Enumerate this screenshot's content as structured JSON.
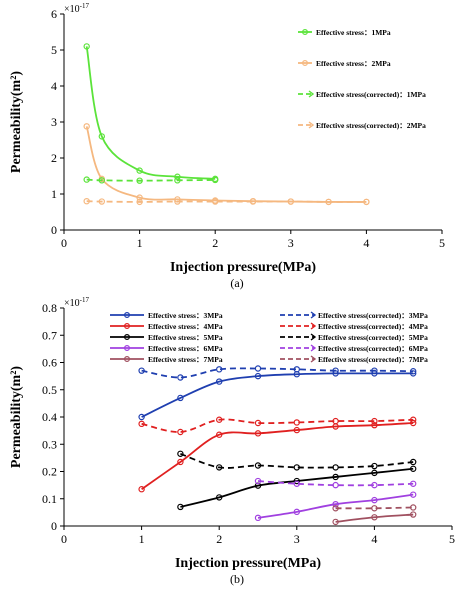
{
  "chart_data": [
    {
      "type": "line",
      "panel_label": "(a)",
      "xlabel": "Injection pressure(MPa)",
      "ylabel": "Permeability(m²)",
      "y_multiplier": "×10",
      "y_multiplier_exp": "-17",
      "xlim": [
        0,
        5
      ],
      "ylim": [
        0,
        6
      ],
      "xticks": [
        "0",
        "1",
        "2",
        "3",
        "4",
        "5"
      ],
      "yticks": [
        "0",
        "1",
        "2",
        "3",
        "4",
        "5",
        "6"
      ],
      "grid": false,
      "legend_position": "right",
      "series": [
        {
          "name": "Effective stress：1MPa",
          "color": "#5be33a",
          "dashed": false,
          "x": [
            0.3,
            0.5,
            1.0,
            1.5,
            2.0
          ],
          "y": [
            5.1,
            2.6,
            1.65,
            1.48,
            1.42
          ]
        },
        {
          "name": "Effective stress：2MPa",
          "color": "#f5b880",
          "dashed": false,
          "x": [
            0.3,
            0.5,
            1.0,
            1.5,
            2.0,
            2.5,
            3.0,
            3.5,
            4.0
          ],
          "y": [
            2.88,
            1.42,
            0.9,
            0.85,
            0.82,
            0.8,
            0.79,
            0.78,
            0.78
          ]
        },
        {
          "name": "Effective stress(corrected)：1MPa",
          "color": "#5be33a",
          "dashed": true,
          "x": [
            0.3,
            0.5,
            1.0,
            1.5,
            2.0
          ],
          "y": [
            1.4,
            1.38,
            1.37,
            1.38,
            1.39
          ]
        },
        {
          "name": "Effective stress(corrected)：2MPa",
          "color": "#f5b880",
          "dashed": true,
          "x": [
            0.3,
            0.5,
            1.0,
            1.5,
            2.0,
            2.5,
            3.0,
            3.5,
            4.0
          ],
          "y": [
            0.8,
            0.79,
            0.78,
            0.79,
            0.79,
            0.79,
            0.79,
            0.78,
            0.78
          ]
        }
      ]
    },
    {
      "type": "line",
      "panel_label": "(b)",
      "xlabel": "Injection pressure(MPa)",
      "ylabel": "Permeability(m²)",
      "y_multiplier": "×10",
      "y_multiplier_exp": "-17",
      "xlim": [
        0,
        5
      ],
      "ylim": [
        0,
        0.8
      ],
      "xticks": [
        "0",
        "1",
        "2",
        "3",
        "4",
        "5"
      ],
      "yticks": [
        "0",
        "0.1",
        "0.2",
        "0.3",
        "0.4",
        "0.5",
        "0.6",
        "0.7",
        "0.8"
      ],
      "grid": false,
      "legend_position": "top",
      "series": [
        {
          "name": "Effective stress：3MPa",
          "color": "#1f3fb0",
          "dashed": false,
          "x": [
            1.0,
            1.5,
            2.0,
            2.5,
            3.0,
            3.5,
            4.0,
            4.5
          ],
          "y": [
            0.4,
            0.47,
            0.53,
            0.55,
            0.557,
            0.56,
            0.56,
            0.56
          ]
        },
        {
          "name": "Effective stress：4MPa",
          "color": "#e02020",
          "dashed": false,
          "x": [
            1.0,
            1.5,
            2.0,
            2.5,
            3.0,
            3.5,
            4.0,
            4.5
          ],
          "y": [
            0.135,
            0.235,
            0.335,
            0.34,
            0.352,
            0.365,
            0.37,
            0.378
          ]
        },
        {
          "name": "Effective stress：5MPa",
          "color": "#000000",
          "dashed": false,
          "x": [
            1.5,
            2.0,
            2.5,
            3.0,
            3.5,
            4.0,
            4.5
          ],
          "y": [
            0.07,
            0.105,
            0.148,
            0.165,
            0.18,
            0.195,
            0.21
          ]
        },
        {
          "name": "Effective stress：6MPa",
          "color": "#a040e0",
          "dashed": false,
          "x": [
            2.5,
            3.0,
            3.5,
            4.0,
            4.5
          ],
          "y": [
            0.03,
            0.052,
            0.08,
            0.095,
            0.115
          ]
        },
        {
          "name": "Effective stress：7MPa",
          "color": "#a05060",
          "dashed": false,
          "x": [
            3.5,
            4.0,
            4.5
          ],
          "y": [
            0.015,
            0.032,
            0.042
          ]
        },
        {
          "name": "Effective stress(corrected)：3MPa",
          "color": "#1f3fb0",
          "dashed": true,
          "x": [
            1.0,
            1.5,
            2.0,
            2.5,
            3.0,
            3.5,
            4.0,
            4.5
          ],
          "y": [
            0.57,
            0.545,
            0.575,
            0.578,
            0.575,
            0.57,
            0.57,
            0.568
          ]
        },
        {
          "name": "Effective stress(corrected)：4MPa",
          "color": "#e02020",
          "dashed": true,
          "x": [
            1.0,
            1.5,
            2.0,
            2.5,
            3.0,
            3.5,
            4.0,
            4.5
          ],
          "y": [
            0.375,
            0.345,
            0.39,
            0.378,
            0.38,
            0.385,
            0.385,
            0.39
          ]
        },
        {
          "name": "Effective stress(corrected)：5MPa",
          "color": "#000000",
          "dashed": true,
          "x": [
            1.5,
            2.0,
            2.5,
            3.0,
            3.5,
            4.0,
            4.5
          ],
          "y": [
            0.265,
            0.215,
            0.222,
            0.215,
            0.215,
            0.22,
            0.235
          ]
        },
        {
          "name": "Effective stress(corrected)：6MPa",
          "color": "#a040e0",
          "dashed": true,
          "x": [
            2.5,
            3.0,
            3.5,
            4.0,
            4.5
          ],
          "y": [
            0.165,
            0.155,
            0.15,
            0.15,
            0.155
          ]
        },
        {
          "name": "Effective stress(corrected)：7MPa",
          "color": "#a05060",
          "dashed": true,
          "x": [
            3.5,
            4.0,
            4.5
          ],
          "y": [
            0.065,
            0.065,
            0.068
          ]
        }
      ]
    }
  ]
}
